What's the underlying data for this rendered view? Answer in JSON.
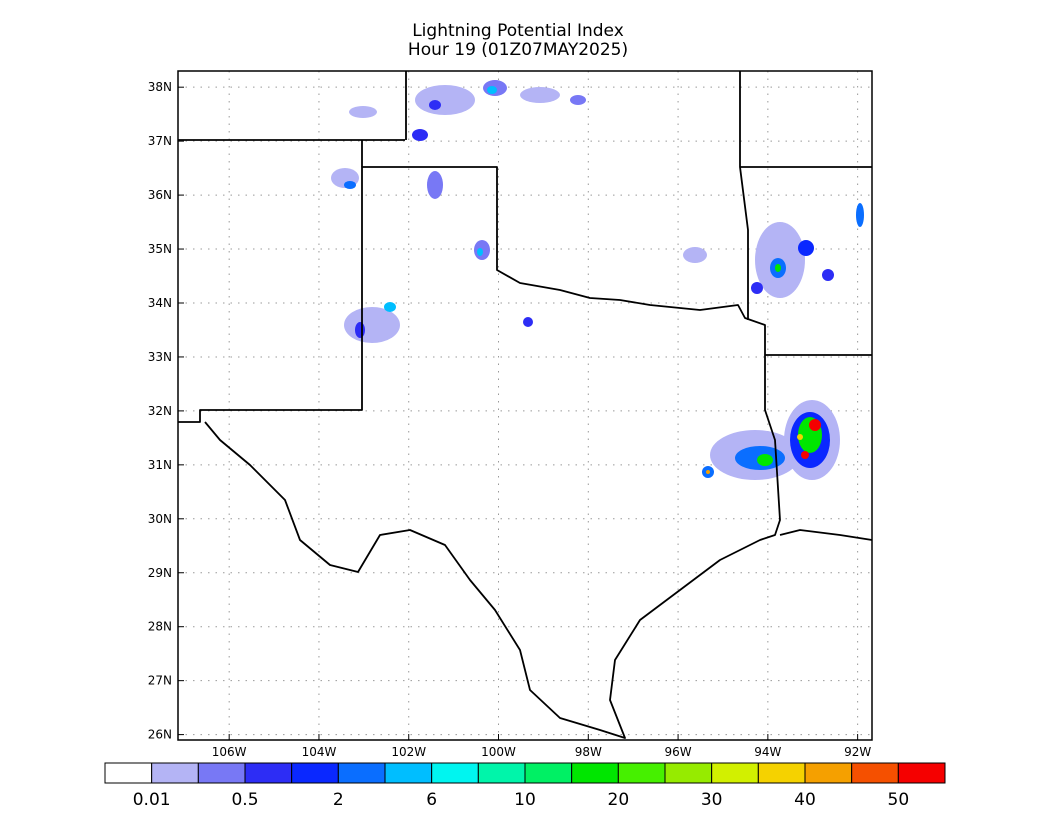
{
  "map": {
    "title": "Lightning Potential Index",
    "subtitle": "Hour 19 (01Z07MAY2025)",
    "lon_range": [
      -107.14,
      -91.68
    ],
    "lat_range": [
      25.9,
      38.3
    ],
    "lon_ticks": [
      {
        "value": -106,
        "label": "106W"
      },
      {
        "value": -104,
        "label": "104W"
      },
      {
        "value": -102,
        "label": "102W"
      },
      {
        "value": -100,
        "label": "100W"
      },
      {
        "value": -98,
        "label": "98W"
      },
      {
        "value": -96,
        "label": "96W"
      },
      {
        "value": -94,
        "label": "94W"
      },
      {
        "value": -92,
        "label": "92W"
      }
    ],
    "lat_ticks": [
      {
        "value": 26,
        "label": "26N"
      },
      {
        "value": 27,
        "label": "27N"
      },
      {
        "value": 28,
        "label": "28N"
      },
      {
        "value": 29,
        "label": "29N"
      },
      {
        "value": 30,
        "label": "30N"
      },
      {
        "value": 31,
        "label": "31N"
      },
      {
        "value": 32,
        "label": "32N"
      },
      {
        "value": 33,
        "label": "33N"
      },
      {
        "value": 34,
        "label": "34N"
      },
      {
        "value": 35,
        "label": "35N"
      },
      {
        "value": 36,
        "label": "36N"
      },
      {
        "value": 37,
        "label": "37N"
      },
      {
        "value": 38,
        "label": "38N"
      }
    ],
    "colorbar": {
      "colors": [
        "#ffffff",
        "#b4b4f5",
        "#7878f5",
        "#2d2df5",
        "#0a28ff",
        "#0a6eff",
        "#00beff",
        "#00f5f0",
        "#00f5aa",
        "#00f064",
        "#00e600",
        "#46f000",
        "#96eb00",
        "#d2f000",
        "#f5d200",
        "#f5a000",
        "#f55000",
        "#f50000"
      ],
      "labels": [
        "0.01",
        "0.5",
        "2",
        "6",
        "10",
        "20",
        "30",
        "40",
        "50"
      ]
    }
  }
}
